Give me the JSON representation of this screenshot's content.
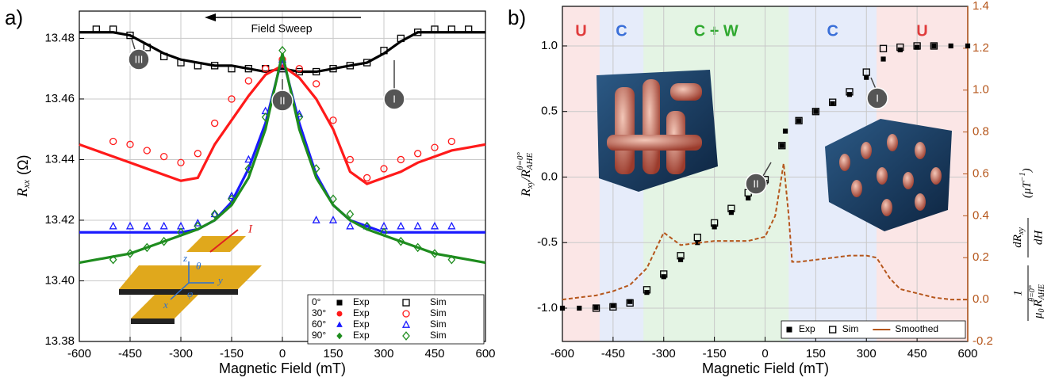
{
  "chart_data": [
    {
      "type": "line",
      "panel": "a)",
      "xlabel": "Magnetic Field (mT)",
      "ylabel": {
        "symbol": "R",
        "subscript": "xx",
        "unit": "(Ω)"
      },
      "xlim": [
        -600,
        600
      ],
      "xticks": [
        -600,
        -450,
        -300,
        -150,
        0,
        150,
        300,
        450,
        600
      ],
      "ylim": [
        13.38,
        13.489
      ],
      "yticks": [
        13.38,
        {
          "value": 13.4,
          "label": "13.40"
        },
        13.42,
        13.44,
        13.46,
        13.48
      ],
      "grid": true,
      "sweep_label": "Field Sweep",
      "callouts": [
        "III",
        "II",
        "I"
      ],
      "device_labels": [
        "I",
        "θ",
        "z",
        "φ",
        "y",
        "x"
      ],
      "x": [
        -600,
        -550,
        -500,
        -450,
        -400,
        -350,
        -300,
        -250,
        -200,
        -150,
        -100,
        -50,
        0,
        50,
        100,
        150,
        200,
        250,
        300,
        350,
        400,
        450,
        500,
        550,
        600
      ],
      "series": [
        {
          "angle": "0°",
          "color": "#000000",
          "exp": {
            "name": "Exp",
            "marker": "square",
            "filled": true,
            "line": true,
            "values": [
              13.482,
              13.482,
              13.482,
              13.481,
              13.478,
              13.475,
              13.473,
              13.472,
              13.471,
              13.471,
              13.47,
              13.469,
              13.47,
              13.469,
              13.469,
              13.47,
              13.471,
              13.472,
              13.475,
              13.479,
              13.482,
              13.482,
              13.482,
              13.482,
              13.482
            ]
          },
          "sim": {
            "name": "Sim",
            "marker": "square",
            "filled": false,
            "values": [
              null,
              13.483,
              13.483,
              13.481,
              13.477,
              13.474,
              13.472,
              13.471,
              13.471,
              13.47,
              13.47,
              13.47,
              13.47,
              13.469,
              13.469,
              13.47,
              13.471,
              13.472,
              13.476,
              13.48,
              13.482,
              13.483,
              13.483,
              13.483,
              null
            ]
          }
        },
        {
          "angle": "30°",
          "color": "#ff1a1a",
          "exp": {
            "name": "Exp",
            "marker": "circle",
            "filled": true,
            "line": true,
            "values": [
              13.445,
              13.443,
              13.441,
              13.439,
              13.437,
              13.435,
              13.433,
              13.434,
              13.445,
              13.453,
              13.461,
              13.468,
              13.471,
              13.467,
              13.46,
              13.45,
              13.436,
              13.432,
              13.434,
              13.436,
              13.439,
              13.441,
              13.443,
              13.444,
              13.445
            ]
          },
          "sim": {
            "name": "Sim",
            "marker": "circle",
            "filled": false,
            "values": [
              null,
              null,
              13.446,
              13.445,
              13.443,
              13.441,
              13.439,
              13.442,
              13.452,
              13.46,
              13.466,
              13.47,
              13.473,
              13.47,
              13.465,
              13.453,
              13.44,
              13.434,
              13.437,
              13.44,
              13.442,
              13.444,
              13.446,
              null,
              null
            ]
          }
        },
        {
          "angle": "60°",
          "color": "#1a1aff",
          "exp": {
            "name": "Exp",
            "marker": "triangle",
            "filled": true,
            "line": true,
            "values": [
              13.416,
              13.416,
              13.416,
              13.416,
              13.416,
              13.416,
              13.416,
              13.417,
              13.42,
              13.426,
              13.437,
              13.452,
              13.474,
              13.452,
              13.435,
              13.425,
              13.42,
              13.418,
              13.416,
              13.416,
              13.416,
              13.416,
              13.416,
              13.416,
              13.416
            ]
          },
          "sim": {
            "name": "Sim",
            "marker": "triangle",
            "filled": false,
            "values": [
              null,
              null,
              13.418,
              13.418,
              13.418,
              13.418,
              13.418,
              13.419,
              13.422,
              13.428,
              13.44,
              13.456,
              13.473,
              13.455,
              13.42,
              13.42,
              13.418,
              13.418,
              13.418,
              13.418,
              13.418,
              13.418,
              13.418,
              null,
              null
            ]
          }
        },
        {
          "angle": "90°",
          "color": "#1e8c1e",
          "exp": {
            "name": "Exp",
            "marker": "diamond",
            "filled": true,
            "line": true,
            "values": [
              13.406,
              13.407,
              13.408,
              13.409,
              13.411,
              13.413,
              13.415,
              13.417,
              13.42,
              13.425,
              13.434,
              13.45,
              13.475,
              13.45,
              13.434,
              13.425,
              13.42,
              13.417,
              13.415,
              13.413,
              13.411,
              13.409,
              13.408,
              13.407,
              13.406
            ]
          },
          "sim": {
            "name": "Sim",
            "marker": "diamond",
            "filled": false,
            "values": [
              null,
              null,
              13.407,
              13.409,
              13.411,
              13.413,
              13.416,
              13.418,
              13.422,
              13.427,
              13.437,
              13.454,
              13.476,
              13.454,
              13.437,
              13.427,
              13.422,
              13.418,
              13.416,
              13.413,
              13.411,
              13.409,
              13.407,
              null,
              null
            ]
          }
        }
      ]
    },
    {
      "type": "line",
      "panel": "b)",
      "xlabel": "Magnetic Field (mT)",
      "ylabel": [
        "R",
        "xy",
        "/R",
        "AHE",
        "θ=0°"
      ],
      "y2label": {
        "num": "1",
        "mu": "μ",
        "zero": "0",
        "R": "R",
        "AHE": "AHE",
        "sup": "θ=0°",
        "dR": "dR",
        "xy": "xy",
        "dH": "dH",
        "unit": "(μT",
        "exp": "−1",
        "close": ")"
      },
      "xlim": [
        -600,
        600
      ],
      "xticks": [
        -600,
        -450,
        -300,
        -150,
        0,
        150,
        300,
        450,
        600
      ],
      "ylim": [
        -1.254,
        1.302
      ],
      "yticks": [
        {
          "value": -1,
          "label": "-1.0"
        },
        -0.5,
        {
          "value": 0,
          "label": "0.0"
        },
        0.5,
        {
          "value": 1,
          "label": "1.0"
        }
      ],
      "y2lim": [
        -0.2,
        1.4
      ],
      "y2ticks": [
        -0.2,
        {
          "value": 0,
          "label": "0.0"
        },
        0.2,
        0.4,
        0.6,
        0.8,
        {
          "value": 1,
          "label": "1.0"
        },
        1.2,
        1.4
      ],
      "y2color": "#b5561b",
      "grid": true,
      "callouts": [
        "II",
        "I"
      ],
      "regions": [
        {
          "label": "U",
          "start": -600,
          "end": -490,
          "color": "#e03c3c"
        },
        {
          "label": "C",
          "start": -490,
          "end": -360,
          "color": "#3a6fd8"
        },
        {
          "label": "C + W",
          "start": -360,
          "end": 70,
          "color": "#2fa82f"
        },
        {
          "label": "C",
          "start": 70,
          "end": 330,
          "color": "#3a6fd8"
        },
        {
          "label": "U",
          "start": 330,
          "end": 600,
          "color": "#e03c3c"
        }
      ],
      "series": [
        {
          "name": "Exp",
          "color": "#000000",
          "marker": "square",
          "filled": true,
          "x": [
            -600,
            -550,
            -500,
            -450,
            -400,
            -350,
            -300,
            -250,
            -200,
            -150,
            -100,
            -50,
            0,
            50,
            60,
            100,
            150,
            200,
            250,
            300,
            350,
            400,
            450,
            500,
            550,
            600
          ],
          "values": [
            -1,
            -1,
            -0.995,
            -0.98,
            -0.95,
            -0.88,
            -0.76,
            -0.63,
            -0.5,
            -0.38,
            -0.27,
            -0.16,
            -0.04,
            0.24,
            0.35,
            0.43,
            0.5,
            0.56,
            0.63,
            0.76,
            0.9,
            0.97,
            0.99,
            1,
            1,
            1
          ]
        },
        {
          "name": "Sim",
          "color": "#000000",
          "marker": "square",
          "filled": false,
          "x": [
            -500,
            -450,
            -400,
            -350,
            -300,
            -250,
            -200,
            -150,
            -100,
            -50,
            0,
            50,
            100,
            150,
            200,
            250,
            300,
            350,
            400,
            450,
            500
          ],
          "values": [
            -1,
            -0.99,
            -0.96,
            -0.86,
            -0.74,
            -0.6,
            -0.46,
            -0.35,
            -0.24,
            -0.12,
            -0.02,
            0.24,
            0.43,
            0.5,
            0.57,
            0.65,
            0.8,
            0.98,
            0.99,
            1,
            1
          ]
        },
        {
          "name": "Smoothed",
          "color": "#b5561b",
          "line": true,
          "dashed": true,
          "axis": "y2",
          "x": [
            -600,
            -550,
            -500,
            -450,
            -400,
            -350,
            -300,
            -250,
            -200,
            -150,
            -100,
            -50,
            0,
            30,
            55,
            70,
            80,
            100,
            150,
            200,
            250,
            300,
            330,
            370,
            400,
            450,
            500,
            550,
            600
          ],
          "values": [
            0,
            0.01,
            0.02,
            0.04,
            0.07,
            0.15,
            0.32,
            0.26,
            0.27,
            0.28,
            0.28,
            0.28,
            0.3,
            0.4,
            0.65,
            0.4,
            0.18,
            0.18,
            0.19,
            0.2,
            0.21,
            0.21,
            0.2,
            0.1,
            0.05,
            0.03,
            0.01,
            0,
            0
          ]
        }
      ]
    }
  ]
}
